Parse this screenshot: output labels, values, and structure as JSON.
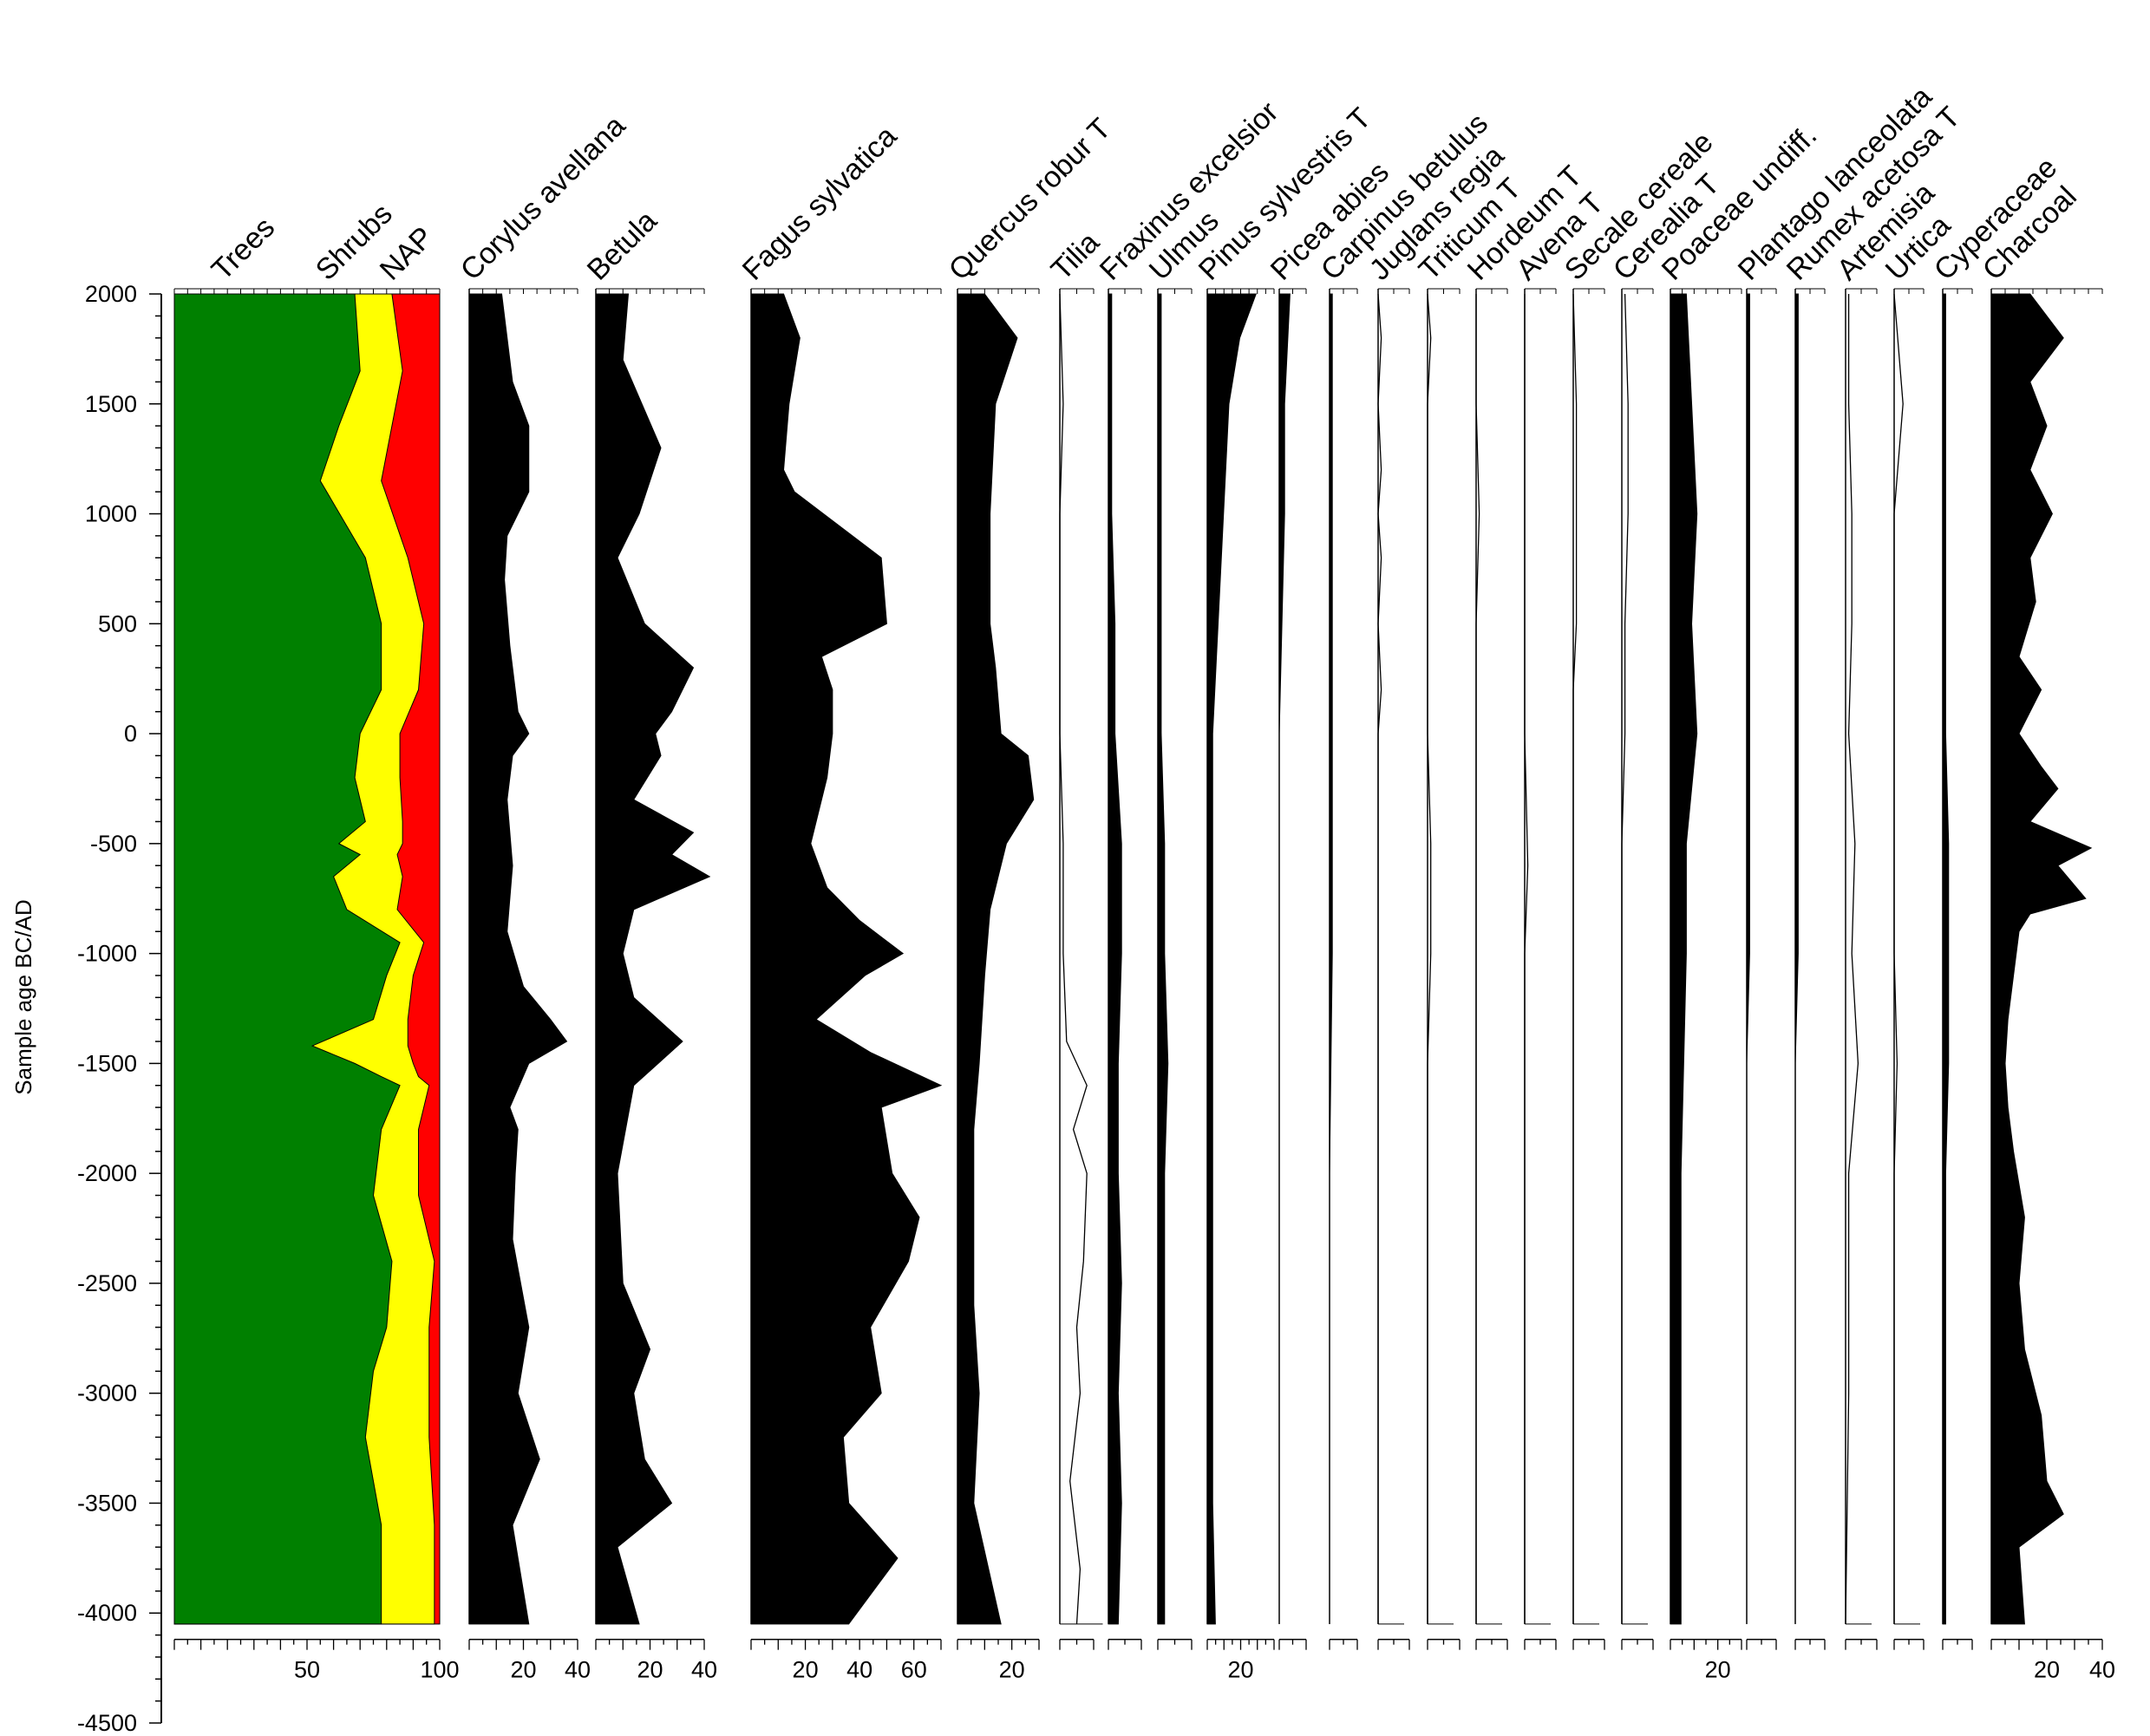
{
  "chart_data": {
    "type": "area",
    "ylabel": "Sample age BC/AD",
    "y_axis": {
      "ticks": [
        2000,
        1500,
        1000,
        500,
        0,
        -500,
        -1000,
        -1500,
        -2000,
        -2500,
        -3000,
        -3500,
        -4000,
        -4500
      ],
      "tick_labels": [
        "2000",
        "1500",
        "1000",
        "500",
        "0",
        "-500",
        "-1000",
        "-1500",
        "-2000",
        "-2500",
        "-3000",
        "-3500",
        "-4000",
        "-4500"
      ],
      "ylim": [
        -4500,
        2000
      ],
      "data_range": [
        -4050,
        2000
      ]
    },
    "summary_diagram": {
      "series": [
        {
          "name": "Trees",
          "color": "#008000"
        },
        {
          "name": "Shrubs",
          "color": "#ffff00"
        },
        {
          "name": "NAP",
          "color": "#ff0000"
        }
      ],
      "xlim": [
        0,
        100
      ],
      "tick_labels": [
        "50",
        "100"
      ],
      "ages": [
        2000,
        1650,
        1400,
        1150,
        800,
        500,
        200,
        0,
        -200,
        -400,
        -500,
        -550,
        -650,
        -800,
        -950,
        -1100,
        -1300,
        -1420,
        -1500,
        -1560,
        -1600,
        -1800,
        -2100,
        -2400,
        -2700,
        -2900,
        -3200,
        -3600,
        -4050
      ],
      "trees_cum": [
        68,
        70,
        62,
        55,
        72,
        78,
        78,
        70,
        68,
        72,
        62,
        70,
        60,
        65,
        85,
        80,
        75,
        52,
        68,
        78,
        85,
        78,
        75,
        82,
        80,
        75,
        72,
        78,
        78
      ],
      "shrubs_cum": [
        82,
        86,
        82,
        78,
        88,
        94,
        92,
        85,
        85,
        86,
        86,
        84,
        86,
        84,
        94,
        90,
        88,
        88,
        90,
        92,
        96,
        92,
        92,
        98,
        96,
        96,
        96,
        98,
        98
      ]
    },
    "taxa": [
      {
        "name": "Corylus avellana",
        "xlim": [
          0,
          40
        ],
        "tick_labels": [
          "20",
          "40"
        ],
        "style": "silhouette",
        "ages": [
          2000,
          1600,
          1400,
          1100,
          900,
          700,
          400,
          100,
          0,
          -100,
          -300,
          -600,
          -900,
          -1150,
          -1300,
          -1400,
          -1500,
          -1700,
          -1800,
          -2000,
          -2300,
          -2700,
          -3000,
          -3300,
          -3600,
          -4050
        ],
        "values": [
          12,
          16,
          22,
          22,
          14,
          13,
          15,
          18,
          22,
          16,
          14,
          16,
          14,
          20,
          30,
          36,
          22,
          15,
          18,
          17,
          16,
          22,
          18,
          26,
          16,
          22
        ]
      },
      {
        "name": "Betula",
        "xlim": [
          0,
          40
        ],
        "tick_labels": [
          "20",
          "40"
        ],
        "style": "silhouette",
        "ages": [
          2000,
          1700,
          1300,
          1000,
          800,
          500,
          300,
          100,
          0,
          -100,
          -300,
          -450,
          -550,
          -650,
          -800,
          -1000,
          -1200,
          -1400,
          -1600,
          -2000,
          -2500,
          -2800,
          -3000,
          -3300,
          -3500,
          -3700,
          -4050
        ],
        "values": [
          12,
          10,
          24,
          16,
          8,
          18,
          36,
          28,
          22,
          24,
          14,
          36,
          28,
          42,
          14,
          10,
          14,
          32,
          14,
          8,
          10,
          20,
          14,
          18,
          28,
          8,
          16
        ]
      },
      {
        "name": "Fagus sylvatica",
        "xlim": [
          0,
          70
        ],
        "tick_labels": [
          "20",
          "40",
          "60"
        ],
        "style": "silhouette",
        "ages": [
          2000,
          1800,
          1500,
          1200,
          1100,
          800,
          500,
          350,
          200,
          0,
          -200,
          -500,
          -700,
          -850,
          -1000,
          -1100,
          -1300,
          -1450,
          -1600,
          -1700,
          -2000,
          -2200,
          -2400,
          -2700,
          -3000,
          -3200,
          -3500,
          -3750,
          -4050
        ],
        "values": [
          12,
          18,
          14,
          12,
          16,
          48,
          50,
          26,
          30,
          30,
          28,
          22,
          28,
          40,
          56,
          42,
          24,
          44,
          70,
          48,
          52,
          62,
          58,
          44,
          48,
          34,
          36,
          54,
          36
        ]
      },
      {
        "name": "Quercus robur T",
        "xlim": [
          0,
          30
        ],
        "tick_labels": [
          "20"
        ],
        "style": "silhouette",
        "ages": [
          2000,
          1800,
          1500,
          1000,
          500,
          300,
          0,
          -100,
          -300,
          -500,
          -800,
          -1100,
          -1500,
          -1800,
          -2200,
          -2600,
          -3000,
          -3500,
          -4050
        ],
        "values": [
          10,
          22,
          14,
          12,
          12,
          14,
          16,
          26,
          28,
          18,
          12,
          10,
          8,
          6,
          6,
          6,
          8,
          6,
          16
        ]
      },
      {
        "name": "Tilia",
        "xlim": [
          0,
          10
        ],
        "tick_labels": [],
        "style": "line",
        "ages": [
          2000,
          1500,
          1000,
          500,
          0,
          -500,
          -1000,
          -1400,
          -1500,
          -1600,
          -1800,
          -2000,
          -2400,
          -2700,
          -3000,
          -3400,
          -3800,
          -4050
        ],
        "values": [
          0,
          1,
          0,
          0,
          0,
          1,
          1,
          2,
          5,
          8,
          4,
          8,
          7,
          5,
          6,
          3,
          6,
          5
        ]
      },
      {
        "name": "Fraxinus excelsior",
        "xlim": [
          0,
          10
        ],
        "tick_labels": [],
        "style": "silhouette",
        "ages": [
          2000,
          1500,
          1000,
          500,
          0,
          -500,
          -1000,
          -1500,
          -2000,
          -2500,
          -3000,
          -3500,
          -4050
        ],
        "values": [
          1,
          1,
          1,
          2,
          2,
          4,
          4,
          3,
          3,
          4,
          3,
          4,
          3
        ]
      },
      {
        "name": "Ulmus",
        "xlim": [
          0,
          10
        ],
        "tick_labels": [],
        "style": "silhouette",
        "ages": [
          2000,
          1500,
          1000,
          500,
          0,
          -500,
          -1000,
          -1500,
          -2000,
          -2500,
          -3000,
          -3500,
          -4050
        ],
        "values": [
          1,
          1,
          1,
          1,
          1,
          2,
          2,
          3,
          2,
          2,
          2,
          2,
          2
        ]
      },
      {
        "name": "Pinus sylvestris T",
        "xlim": [
          0,
          40
        ],
        "tick_labels": [
          "20"
        ],
        "style": "silhouette",
        "ages": [
          2000,
          1800,
          1500,
          1000,
          500,
          0,
          -500,
          -1000,
          -1500,
          -2000,
          -2500,
          -3000,
          -3500,
          -4050
        ],
        "values": [
          18,
          12,
          8,
          6,
          4,
          2,
          2,
          2,
          2,
          2,
          2,
          2,
          2,
          3
        ]
      },
      {
        "name": "Picea abies",
        "xlim": [
          0,
          10
        ],
        "tick_labels": [],
        "style": "silhouette",
        "ages": [
          2000,
          1500,
          1000,
          500,
          0,
          -500,
          -1000,
          -2000,
          -3000,
          -4050
        ],
        "values": [
          4,
          2,
          2,
          1,
          0,
          0,
          0,
          0,
          0,
          0
        ]
      },
      {
        "name": "Carpinus betulus",
        "xlim": [
          0,
          10
        ],
        "tick_labels": [],
        "style": "silhouette",
        "ages": [
          2000,
          1500,
          1000,
          500,
          0,
          -500,
          -1000,
          -2000,
          -3000,
          -4050
        ],
        "values": [
          1,
          1,
          1,
          1,
          1,
          1,
          1,
          0,
          0,
          0
        ]
      },
      {
        "name": "Juglans regia",
        "xlim": [
          0,
          10
        ],
        "tick_labels": [],
        "style": "line",
        "ages": [
          2000,
          1800,
          1500,
          1200,
          1000,
          800,
          500,
          200,
          0,
          -500,
          -1000,
          -2000,
          -4050
        ],
        "values": [
          0,
          1,
          0,
          1,
          0,
          1,
          0,
          1,
          0,
          0,
          0,
          0,
          0
        ]
      },
      {
        "name": "Triticum T",
        "xlim": [
          0,
          10
        ],
        "tick_labels": [],
        "style": "line",
        "ages": [
          2000,
          1800,
          1500,
          1000,
          500,
          0,
          -500,
          -1000,
          -1500,
          -2000,
          -3000,
          -4050
        ],
        "values": [
          0,
          1,
          0,
          0,
          0,
          0,
          1,
          1,
          0,
          0,
          0,
          0
        ]
      },
      {
        "name": "Hordeum T",
        "xlim": [
          0,
          10
        ],
        "tick_labels": [],
        "style": "line",
        "ages": [
          2000,
          1500,
          1000,
          500,
          0,
          -500,
          -1000,
          -2000,
          -3000,
          -4050
        ],
        "values": [
          0,
          0,
          1,
          0,
          0,
          0,
          0,
          0,
          0,
          0
        ]
      },
      {
        "name": "Avena T",
        "xlim": [
          0,
          10
        ],
        "tick_labels": [],
        "style": "line",
        "ages": [
          2000,
          1000,
          0,
          -600,
          -1000,
          -2000,
          -4050
        ],
        "values": [
          0,
          0,
          0,
          1,
          0,
          0,
          0
        ]
      },
      {
        "name": "Secale cereale",
        "xlim": [
          0,
          10
        ],
        "tick_labels": [],
        "style": "line",
        "ages": [
          2000,
          1500,
          1000,
          500,
          200,
          0,
          -300,
          -1000,
          -2000,
          -4050
        ],
        "values": [
          0,
          1,
          1,
          1,
          0,
          0,
          0,
          0,
          0,
          0
        ]
      },
      {
        "name": "Cerealia T",
        "xlim": [
          0,
          10
        ],
        "tick_labels": [],
        "style": "line",
        "ages": [
          2000,
          1500,
          1000,
          500,
          0,
          -500,
          -1000,
          -2000,
          -4050
        ],
        "values": [
          1,
          2,
          2,
          1,
          1,
          0,
          0,
          0,
          0
        ]
      },
      {
        "name": "Poaceae undiff.",
        "xlim": [
          0,
          30
        ],
        "tick_labels": [
          "20"
        ],
        "style": "silhouette",
        "ages": [
          2000,
          1500,
          1000,
          500,
          0,
          -500,
          -1000,
          -1500,
          -2000,
          -2500,
          -3000,
          -3500,
          -4050
        ],
        "values": [
          6,
          8,
          10,
          8,
          10,
          6,
          6,
          5,
          4,
          4,
          4,
          4,
          4
        ]
      },
      {
        "name": "Plantago lanceolata",
        "xlim": [
          0,
          10
        ],
        "tick_labels": [],
        "style": "silhouette",
        "ages": [
          2000,
          1500,
          1000,
          500,
          0,
          -500,
          -1000,
          -1500,
          -2000,
          -3000,
          -4050
        ],
        "values": [
          1,
          1,
          1,
          1,
          1,
          1,
          1,
          0,
          0,
          0,
          0
        ]
      },
      {
        "name": "Rumex acetosa T",
        "xlim": [
          0,
          10
        ],
        "tick_labels": [],
        "style": "silhouette",
        "ages": [
          2000,
          1500,
          1000,
          500,
          0,
          -500,
          -1000,
          -1500,
          -2000,
          -3000,
          -4050
        ],
        "values": [
          1,
          1,
          1,
          1,
          1,
          1,
          1,
          0,
          0,
          0,
          0
        ]
      },
      {
        "name": "Artemisia",
        "xlim": [
          0,
          10
        ],
        "tick_labels": [],
        "style": "line",
        "ages": [
          2000,
          1500,
          1000,
          500,
          0,
          -500,
          -1000,
          -1500,
          -2000,
          -3000,
          -4050
        ],
        "values": [
          1,
          1,
          2,
          2,
          1,
          3,
          2,
          4,
          1,
          1,
          0
        ]
      },
      {
        "name": "Urtica",
        "xlim": [
          0,
          10
        ],
        "tick_labels": [],
        "style": "line",
        "ages": [
          2000,
          1500,
          1000,
          500,
          0,
          -500,
          -1000,
          -1500,
          -2000,
          -3000,
          -4050
        ],
        "values": [
          0,
          3,
          0,
          0,
          0,
          0,
          0,
          1,
          0,
          0,
          0
        ]
      },
      {
        "name": "Cyperaceae",
        "xlim": [
          0,
          10
        ],
        "tick_labels": [],
        "style": "silhouette",
        "ages": [
          2000,
          1500,
          1000,
          500,
          0,
          -500,
          -1000,
          -1500,
          -2000,
          -3000,
          -4050
        ],
        "values": [
          1,
          1,
          1,
          1,
          1,
          2,
          2,
          2,
          1,
          1,
          1
        ]
      },
      {
        "name": "Charcoal",
        "xlim": [
          0,
          40
        ],
        "tick_labels": [
          "20",
          "40"
        ],
        "style": "silhouette",
        "ages": [
          2000,
          1800,
          1600,
          1400,
          1200,
          1000,
          800,
          600,
          350,
          200,
          0,
          -150,
          -250,
          -400,
          -520,
          -600,
          -750,
          -820,
          -900,
          -1100,
          -1300,
          -1500,
          -1700,
          -1900,
          -2200,
          -2500,
          -2800,
          -3100,
          -3400,
          -3550,
          -3700,
          -4050
        ],
        "values": [
          14,
          26,
          14,
          20,
          14,
          22,
          14,
          16,
          10,
          18,
          10,
          18,
          24,
          14,
          36,
          24,
          34,
          14,
          10,
          8,
          6,
          5,
          6,
          8,
          12,
          10,
          12,
          18,
          20,
          26,
          10,
          12
        ]
      }
    ]
  }
}
